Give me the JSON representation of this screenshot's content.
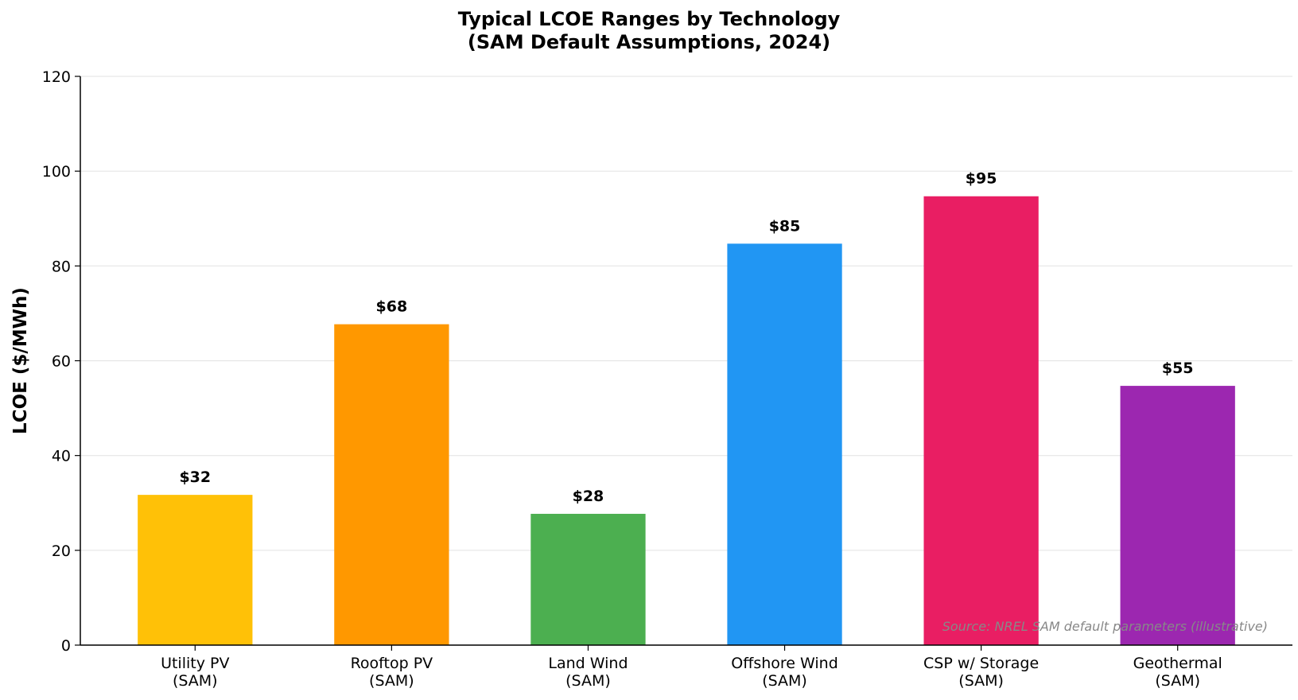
{
  "chart_data": {
    "type": "bar",
    "title": "Typical LCOE Ranges by Technology\n(SAM Default Assumptions, 2024)",
    "y_label": "LCOE ($/MWh)",
    "annotation": "Source: NREL SAM default parameters (illustrative)",
    "categories": [
      "Utility PV\n(SAM)",
      "Rooftop PV\n(SAM)",
      "Land Wind\n(SAM)",
      "Offshore Wind\n(SAM)",
      "CSP w/ Storage\n(SAM)",
      "Geothermal\n(SAM)"
    ],
    "values": [
      31.7,
      67.7,
      27.7,
      84.7,
      94.7,
      54.7
    ],
    "value_labels": [
      "$32",
      "$68",
      "$28",
      "$85",
      "$95",
      "$55"
    ],
    "colors": [
      "#FFC107",
      "#FF9800",
      "#4CAF50",
      "#2196F3",
      "#E91E63",
      "#9C27B0"
    ],
    "ylim": [
      0,
      120
    ],
    "yticks": [
      0,
      20,
      40,
      60,
      80,
      100,
      120
    ],
    "grid": true
  }
}
